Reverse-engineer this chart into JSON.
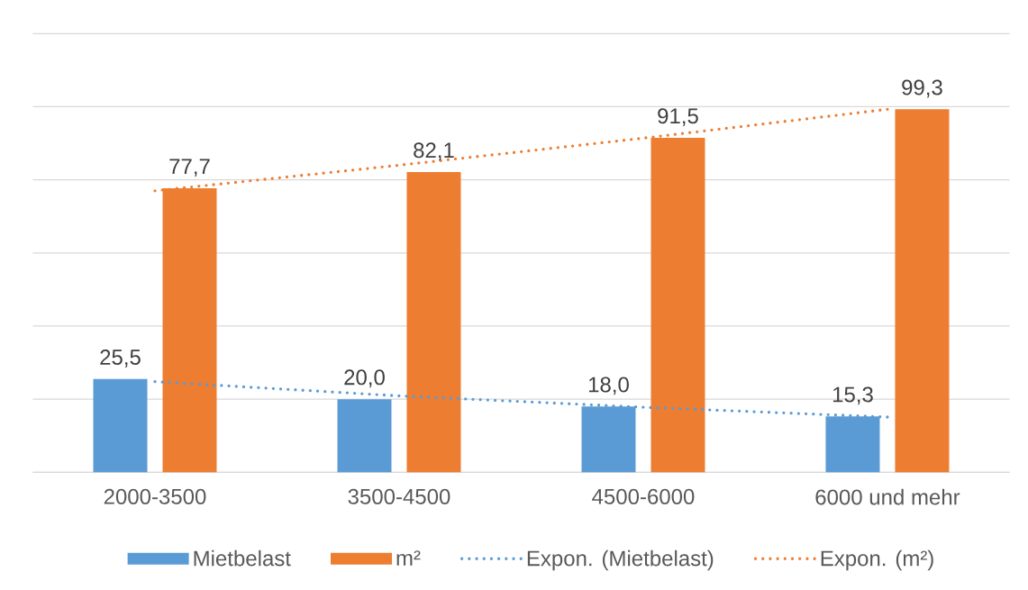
{
  "chart_data": {
    "type": "bar",
    "categories": [
      "2000-3500",
      "3500-4500",
      "4500-6000",
      "6000 und mehr"
    ],
    "series": [
      {
        "name": "Mietbelast",
        "color": "#5b9bd5",
        "values": [
          25.5,
          20.0,
          18.0,
          15.3
        ],
        "value_labels": [
          "25,5",
          "20,0",
          "18,0",
          "15,3"
        ]
      },
      {
        "name": "m²",
        "color": "#ed7d31",
        "values": [
          77.7,
          82.1,
          91.5,
          99.3
        ],
        "value_labels": [
          "77,7",
          "82,1",
          "91,5",
          "99,3"
        ]
      },
      {
        "name": "Expon. (Mietbelast)",
        "type": "line",
        "color": "#5b9bd5",
        "line_style": "dotted",
        "values": [
          24.8,
          20.9,
          17.8,
          15.1
        ]
      },
      {
        "name": "Expon. (m²)",
        "type": "line",
        "color": "#ed7d31",
        "line_style": "dotted",
        "values": [
          77.0,
          84.0,
          91.4,
          99.3
        ]
      }
    ],
    "ylim": [
      0,
      120
    ],
    "yticks": [
      {
        "value": 0,
        "label": null
      },
      {
        "value": 20,
        "label": null
      },
      {
        "value": 40,
        "label": null
      },
      {
        "value": 60,
        "label": null
      },
      {
        "value": 80,
        "label": null
      },
      {
        "value": 100,
        "label": null
      },
      {
        "value": 120,
        "label": null
      }
    ],
    "tick_labels": "x",
    "grid": "y",
    "legend": "bottom"
  }
}
